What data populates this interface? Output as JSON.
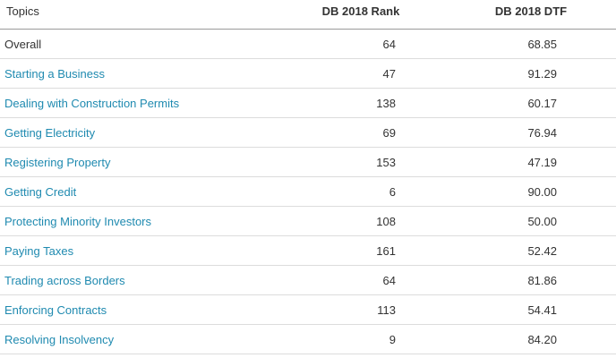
{
  "headers": {
    "topic": "Topics",
    "rank": "DB 2018 Rank",
    "dtf": "DB 2018 DTF"
  },
  "rows": [
    {
      "topic": "Overall",
      "rank": "64",
      "dtf": "68.85"
    },
    {
      "topic": "Starting a Business",
      "rank": "47",
      "dtf": "91.29"
    },
    {
      "topic": "Dealing with Construction Permits",
      "rank": "138",
      "dtf": "60.17"
    },
    {
      "topic": "Getting Electricity",
      "rank": "69",
      "dtf": "76.94"
    },
    {
      "topic": "Registering Property",
      "rank": "153",
      "dtf": "47.19"
    },
    {
      "topic": "Getting Credit",
      "rank": "6",
      "dtf": "90.00"
    },
    {
      "topic": "Protecting Minority Investors",
      "rank": "108",
      "dtf": "50.00"
    },
    {
      "topic": "Paying Taxes",
      "rank": "161",
      "dtf": "52.42"
    },
    {
      "topic": "Trading across Borders",
      "rank": "64",
      "dtf": "81.86"
    },
    {
      "topic": "Enforcing Contracts",
      "rank": "113",
      "dtf": "54.41"
    },
    {
      "topic": "Resolving Insolvency",
      "rank": "9",
      "dtf": "84.20"
    }
  ],
  "colors": {
    "link": "#1f8ab0",
    "text": "#333333",
    "divider": "#dcdcdc"
  }
}
